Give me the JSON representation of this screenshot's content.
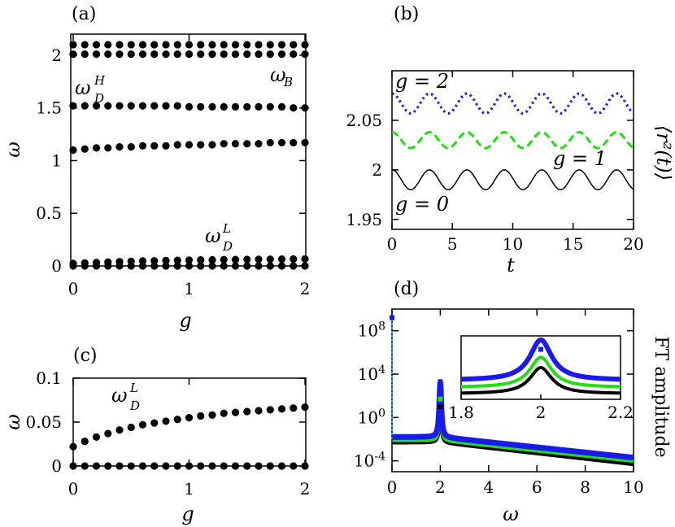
{
  "chart_data": [
    {
      "panel": "(a)",
      "type": "scatter",
      "xlabel": "g",
      "ylabel": "ω",
      "xlim": [
        0,
        2
      ],
      "ylim": [
        0,
        2.2
      ],
      "xticks": [
        "0",
        "1",
        "2"
      ],
      "yticks": [
        "0",
        "0.5",
        "1",
        "1.5",
        "2"
      ],
      "x": [
        0,
        0.1,
        0.2,
        0.3,
        0.4,
        0.5,
        0.6,
        0.7,
        0.8,
        0.9,
        1.0,
        1.1,
        1.2,
        1.3,
        1.4,
        1.5,
        1.6,
        1.7,
        1.8,
        1.9,
        2.0
      ],
      "series": [
        {
          "values": [
            2.1,
            2.1,
            2.1,
            2.1,
            2.1,
            2.1,
            2.1,
            2.1,
            2.1,
            2.1,
            2.1,
            2.1,
            2.1,
            2.1,
            2.1,
            2.1,
            2.1,
            2.1,
            2.1,
            2.1,
            2.1
          ]
        },
        {
          "values": [
            2.01,
            2.01,
            2.01,
            2.01,
            2.01,
            2.01,
            2.01,
            2.01,
            2.01,
            2.01,
            2.01,
            2.01,
            2.01,
            2.01,
            2.01,
            2.01,
            2.01,
            2.01,
            2.01,
            2.01,
            2.01
          ]
        },
        {
          "values": [
            1.52,
            1.52,
            1.52,
            1.52,
            1.52,
            1.52,
            1.52,
            1.52,
            1.52,
            1.52,
            1.51,
            1.51,
            1.51,
            1.51,
            1.51,
            1.51,
            1.51,
            1.51,
            1.51,
            1.5,
            1.5
          ]
        },
        {
          "values": [
            1.1,
            1.11,
            1.12,
            1.12,
            1.13,
            1.13,
            1.14,
            1.14,
            1.14,
            1.15,
            1.15,
            1.15,
            1.15,
            1.16,
            1.16,
            1.16,
            1.16,
            1.17,
            1.17,
            1.17,
            1.17
          ]
        },
        {
          "values": [
            0.022,
            0.028,
            0.033,
            0.037,
            0.041,
            0.044,
            0.047,
            0.049,
            0.051,
            0.053,
            0.055,
            0.057,
            0.058,
            0.06,
            0.061,
            0.062,
            0.063,
            0.064,
            0.065,
            0.066,
            0.067
          ]
        },
        {
          "values": [
            0,
            0,
            0,
            0,
            0,
            0,
            0,
            0,
            0,
            0,
            0,
            0,
            0,
            0,
            0,
            0,
            0,
            0,
            0,
            0,
            0
          ]
        }
      ],
      "annotations": [
        "ω_D^H",
        "ω_B",
        "ω_D^L"
      ]
    },
    {
      "panel": "(b)",
      "type": "line",
      "xlabel": "t",
      "ylabel": "⟨r²(t)⟩",
      "xlim": [
        0,
        20
      ],
      "ylim": [
        1.94,
        2.1
      ],
      "xticks": [
        "0",
        "5",
        "10",
        "15",
        "20"
      ],
      "yticks": [
        "1.95",
        "2",
        "2.05"
      ],
      "period": 3.1,
      "series": [
        {
          "name": "g = 0",
          "mean": 1.99,
          "amplitude": 0.01,
          "color": "#000000",
          "style": "solid"
        },
        {
          "name": "g = 1",
          "mean": 2.03,
          "amplitude": 0.008,
          "color": "#22dd11",
          "style": "dashed"
        },
        {
          "name": "g = 2",
          "mean": 2.067,
          "amplitude": 0.01,
          "color": "#1a1aee",
          "style": "dotted"
        }
      ]
    },
    {
      "panel": "(c)",
      "type": "scatter",
      "xlabel": "g",
      "ylabel": "ω",
      "xlim": [
        0,
        2
      ],
      "ylim": [
        0,
        0.1
      ],
      "xticks": [
        "0",
        "1",
        "2"
      ],
      "yticks": [
        "0",
        "0.05",
        "0.1"
      ],
      "x": [
        0,
        0.1,
        0.2,
        0.3,
        0.4,
        0.5,
        0.6,
        0.7,
        0.8,
        0.9,
        1.0,
        1.1,
        1.2,
        1.3,
        1.4,
        1.5,
        1.6,
        1.7,
        1.8,
        1.9,
        2.0
      ],
      "series": [
        {
          "values": [
            0.022,
            0.028,
            0.033,
            0.037,
            0.041,
            0.044,
            0.047,
            0.049,
            0.051,
            0.053,
            0.055,
            0.057,
            0.058,
            0.06,
            0.061,
            0.062,
            0.063,
            0.064,
            0.065,
            0.066,
            0.067
          ]
        },
        {
          "values": [
            0,
            0,
            0,
            0,
            0,
            0,
            0,
            0,
            0,
            0,
            0,
            0,
            0,
            0,
            0,
            0,
            0,
            0,
            0,
            0,
            0
          ]
        }
      ],
      "annotations": [
        "ω_D^L"
      ]
    },
    {
      "panel": "(d)",
      "type": "line",
      "xlabel": "ω",
      "ylabel": "FT amplitude",
      "xlim": [
        0,
        10
      ],
      "ylim_log10": [
        -5,
        10
      ],
      "log_y": true,
      "xticks": [
        "0",
        "2",
        "4",
        "6",
        "8",
        "10"
      ],
      "yticks": [
        "10^-4",
        "10^0",
        "10^4",
        "10^8"
      ],
      "series": [
        {
          "g": 0,
          "color": "#000000",
          "peak_omega": 2.0,
          "peak_log10": 1.0,
          "base_log10": -2.3,
          "tail_log10": -4.3
        },
        {
          "g": 1,
          "color": "#22dd11",
          "peak_omega": 2.0,
          "peak_log10": 1.7,
          "base_log10": -2.1,
          "tail_log10": -4.0
        },
        {
          "g": 2,
          "color": "#1a1aee",
          "peak_omega": 2.0,
          "peak_log10": 3.3,
          "base_log10": -1.8,
          "tail_log10": -3.7
        }
      ],
      "inset": {
        "xlim": [
          1.8,
          2.2
        ],
        "xticks": [
          "1.8",
          "2",
          "2.2"
        ]
      }
    }
  ],
  "labels": {
    "a": "(a)",
    "b": "(b)",
    "c": "(c)",
    "d": "(d)",
    "a_x": "g",
    "a_y": "ω",
    "b_x": "t",
    "b_y": "⟨r²(t)⟩",
    "c_x": "g",
    "c_y": "ω",
    "d_x": "ω",
    "d_y": "FT amplitude",
    "ann_wDH": "ω",
    "ann_wDH_sup": "H",
    "ann_wDH_sub": "D",
    "ann_wB": "ω",
    "ann_wB_sub": "B",
    "ann_wDL": "ω",
    "ann_wDL_sup": "L",
    "ann_wDL_sub": "D",
    "ann_c_wDL": "ω",
    "ann_c_wDL_sup": "L",
    "ann_c_wDL_sub": "D",
    "g2": "g = 2",
    "g1": "g = 1",
    "g0": "g = 0"
  }
}
